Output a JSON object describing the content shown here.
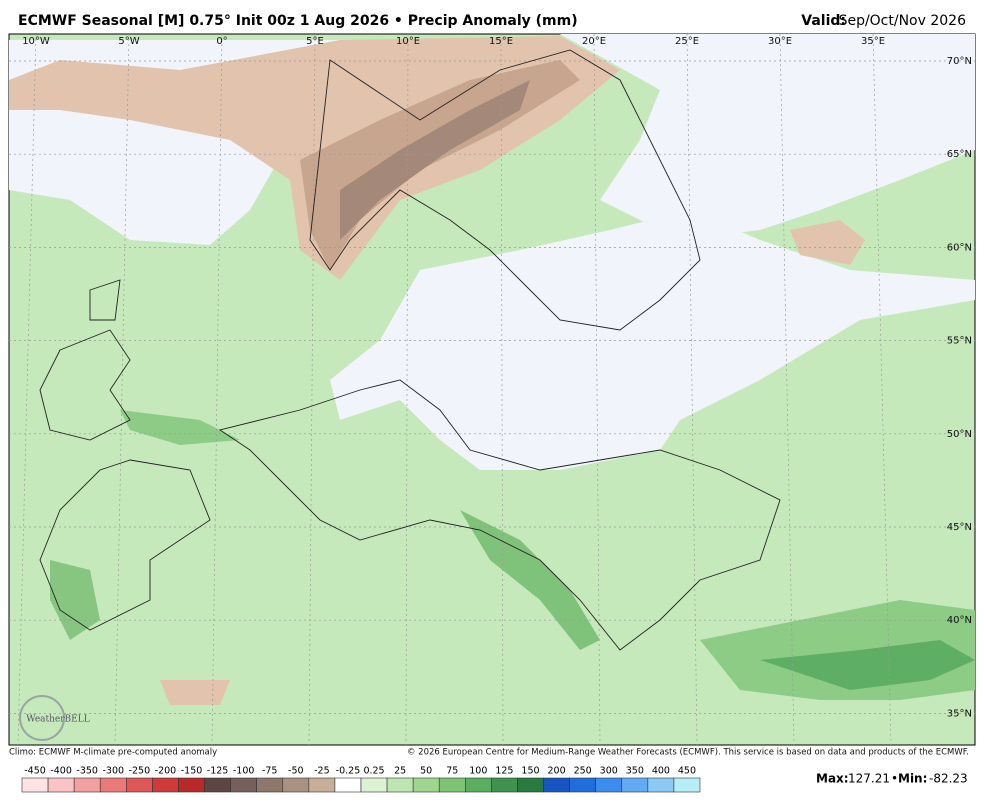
{
  "header": {
    "title": "ECMWF Seasonal [M] 0.75° Init 00z 1 Aug 2026 • Precip Anomaly (mm)",
    "valid_label": "Valid:",
    "valid": "Sep/Oct/Nov 2026"
  },
  "map": {
    "lon_labels": [
      "10°W",
      "5°W",
      "0°",
      "5°E",
      "10°E",
      "15°E",
      "20°E",
      "25°E",
      "30°E",
      "35°E"
    ],
    "lat_labels": [
      "70°N",
      "65°N",
      "60°N",
      "55°N",
      "50°N",
      "45°N",
      "40°N",
      "35°N"
    ],
    "logo": "WeatherBELL"
  },
  "footer": {
    "climo": "Climo: ECMWF M-climate pre-computed anomaly",
    "copyright": "© 2026 European Centre for Medium-Range Weather Forecasts (ECMWF). This service is based on data and products of the ECMWF."
  },
  "colorbar": {
    "labels": [
      -450,
      -400,
      -350,
      -300,
      -250,
      -200,
      -150,
      -125,
      -100,
      -75,
      -50,
      -25,
      -0.25,
      0.25,
      25,
      50,
      75,
      100,
      125,
      150,
      200,
      250,
      300,
      350,
      400,
      450
    ],
    "colors": [
      "#fde3e3",
      "#f8c4c4",
      "#f2a0a0",
      "#ea7a7a",
      "#de5656",
      "#cf3a3a",
      "#b82a2a",
      "#5e4640",
      "#76605a",
      "#8e786c",
      "#a99282",
      "#c8ae98",
      "#ffffff",
      "#dbf2d3",
      "#bfe6b2",
      "#9fd68f",
      "#7cc474",
      "#5aae60",
      "#3e944f",
      "#287a3e",
      "#1654c4",
      "#1f6ede",
      "#3a8cee",
      "#62aaf4",
      "#8ccaf6",
      "#b6eef8"
    ]
  },
  "stats": {
    "max_label": "Max:",
    "max": 127.21,
    "min_label": "Min:",
    "min": -82.23
  }
}
